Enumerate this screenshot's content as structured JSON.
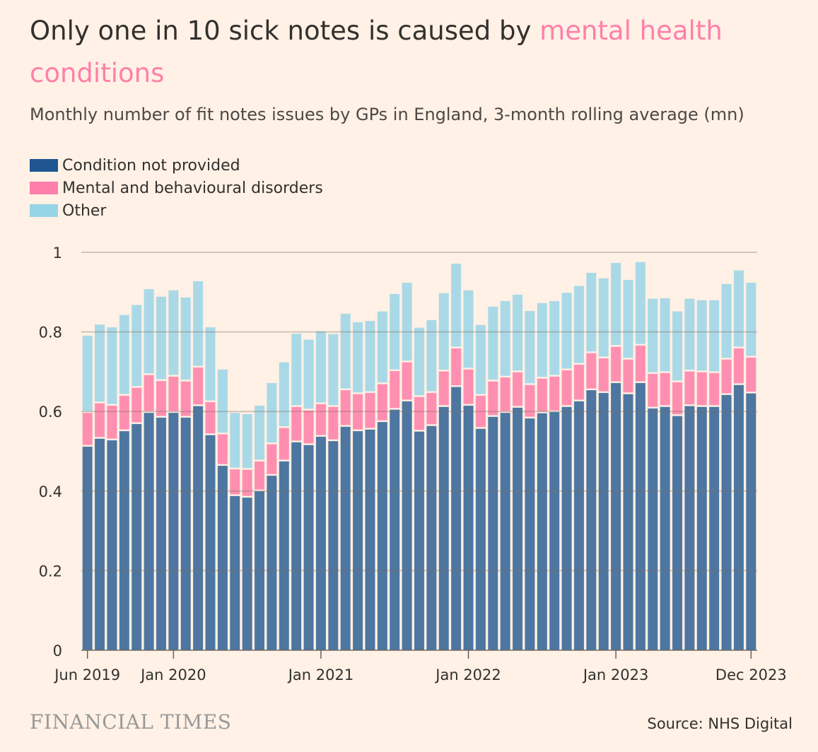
{
  "title": {
    "prefix": "Only one in 10 sick notes is caused by ",
    "highlight": "mental health conditions"
  },
  "subtitle": "Monthly number of fit notes issues by GPs in England, 3-month rolling average (mn)",
  "source": "Source: NHS Digital",
  "logo": "FINANCIAL TIMES",
  "colors": {
    "background": "#fff1e5",
    "condition_not_provided": "#4d76a0",
    "mental": "#ff8fb1",
    "other": "#a9d9e7",
    "legend_condition_not_provided": "#1f5591",
    "legend_mental": "#ff7faa",
    "legend_other": "#96d4e8",
    "highlight": "#ff7faa"
  },
  "chart_data": {
    "type": "bar",
    "stacked": true,
    "title": "Only one in 10 sick notes is caused by mental health conditions",
    "subtitle": "Monthly number of fit notes issues by GPs in England, 3-month rolling average (mn)",
    "xlabel": "",
    "ylabel": "",
    "ylim": [
      0,
      1
    ],
    "yticks": [
      "0",
      "0.2",
      "0.4",
      "0.6",
      "0.8",
      "1"
    ],
    "grid": true,
    "legend_placement": "top-left",
    "xticks": [
      {
        "label": "Jun 2019",
        "month": "Jun 2019"
      },
      {
        "label": "Jan 2020",
        "month": "Jan 2020"
      },
      {
        "label": "Jan 2021",
        "month": "Jan 2021"
      },
      {
        "label": "Jan 2022",
        "month": "Jan 2022"
      },
      {
        "label": "Jan 2023",
        "month": "Jan 2023"
      },
      {
        "label": "Dec 2023",
        "month": "Dec 2023"
      }
    ],
    "categories": [
      "Jun 2019",
      "Jul 2019",
      "Aug 2019",
      "Sep 2019",
      "Oct 2019",
      "Nov 2019",
      "Dec 2019",
      "Jan 2020",
      "Feb 2020",
      "Mar 2020",
      "Apr 2020",
      "May 2020",
      "Jun 2020",
      "Jul 2020",
      "Aug 2020",
      "Sep 2020",
      "Oct 2020",
      "Nov 2020",
      "Dec 2020",
      "Jan 2021",
      "Feb 2021",
      "Mar 2021",
      "Apr 2021",
      "May 2021",
      "Jun 2021",
      "Jul 2021",
      "Aug 2021",
      "Sep 2021",
      "Oct 2021",
      "Nov 2021",
      "Dec 2021",
      "Jan 2022",
      "Feb 2022",
      "Mar 2022",
      "Apr 2022",
      "May 2022",
      "Jun 2022",
      "Jul 2022",
      "Aug 2022",
      "Sep 2022",
      "Oct 2022",
      "Nov 2022",
      "Dec 2022",
      "Jan 2023",
      "Feb 2023",
      "Mar 2023",
      "Apr 2023",
      "May 2023",
      "Jun 2023",
      "Jul 2023",
      "Aug 2023",
      "Sep 2023",
      "Oct 2023",
      "Nov 2023",
      "Dec 2023"
    ],
    "series": [
      {
        "name": "Condition not provided",
        "values": [
          0.513,
          0.533,
          0.529,
          0.552,
          0.57,
          0.598,
          0.586,
          0.598,
          0.586,
          0.615,
          0.542,
          0.465,
          0.389,
          0.385,
          0.401,
          0.44,
          0.476,
          0.524,
          0.517,
          0.538,
          0.527,
          0.563,
          0.552,
          0.556,
          0.575,
          0.606,
          0.627,
          0.551,
          0.565,
          0.613,
          0.663,
          0.616,
          0.558,
          0.588,
          0.598,
          0.611,
          0.584,
          0.597,
          0.6,
          0.613,
          0.627,
          0.655,
          0.648,
          0.673,
          0.645,
          0.673,
          0.609,
          0.613,
          0.59,
          0.615,
          0.613,
          0.613,
          0.643,
          0.668,
          0.647
        ]
      },
      {
        "name": "Mental and behavioural disorders",
        "values": [
          0.085,
          0.089,
          0.087,
          0.089,
          0.091,
          0.095,
          0.092,
          0.091,
          0.091,
          0.097,
          0.083,
          0.079,
          0.067,
          0.07,
          0.075,
          0.079,
          0.084,
          0.089,
          0.087,
          0.082,
          0.086,
          0.092,
          0.093,
          0.092,
          0.095,
          0.097,
          0.098,
          0.087,
          0.083,
          0.089,
          0.097,
          0.091,
          0.083,
          0.089,
          0.089,
          0.089,
          0.084,
          0.087,
          0.089,
          0.092,
          0.092,
          0.093,
          0.087,
          0.091,
          0.087,
          0.094,
          0.087,
          0.085,
          0.085,
          0.087,
          0.087,
          0.085,
          0.089,
          0.092,
          0.09
        ]
      },
      {
        "name": "Other",
        "values": [
          0.194,
          0.198,
          0.197,
          0.203,
          0.208,
          0.216,
          0.212,
          0.217,
          0.211,
          0.217,
          0.188,
          0.163,
          0.142,
          0.14,
          0.14,
          0.154,
          0.165,
          0.184,
          0.178,
          0.183,
          0.183,
          0.192,
          0.181,
          0.181,
          0.183,
          0.194,
          0.2,
          0.174,
          0.183,
          0.197,
          0.213,
          0.199,
          0.178,
          0.188,
          0.192,
          0.195,
          0.186,
          0.19,
          0.19,
          0.195,
          0.198,
          0.202,
          0.201,
          0.211,
          0.2,
          0.21,
          0.189,
          0.188,
          0.178,
          0.183,
          0.181,
          0.183,
          0.19,
          0.196,
          0.188
        ]
      }
    ]
  }
}
